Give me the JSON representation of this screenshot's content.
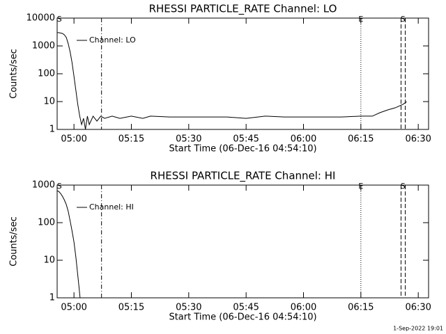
{
  "chart_data": [
    {
      "type": "line",
      "title": "RHESSI PARTICLE_RATE Channel: LO",
      "xlabel": "Start Time (06-Dec-16 04:54:10)",
      "ylabel": "Counts/sec",
      "log_y": true,
      "xlim": [
        295.6,
        392.7
      ],
      "ylim": [
        1,
        10000
      ],
      "yticks": [
        1,
        10,
        100,
        1000,
        10000
      ],
      "xticks": [
        {
          "value": 300,
          "label": "05:00"
        },
        {
          "value": 315,
          "label": "05:15"
        },
        {
          "value": 330,
          "label": "05:30"
        },
        {
          "value": 345,
          "label": "05:45"
        },
        {
          "value": 360,
          "label": "06:00"
        },
        {
          "value": 375,
          "label": "06:15"
        },
        {
          "value": 390,
          "label": "06:30"
        }
      ],
      "x": [
        295.6,
        296,
        296.5,
        297,
        297.5,
        298,
        298.5,
        299,
        299.5,
        300,
        300.5,
        301,
        301.5,
        302,
        302.5,
        303,
        303.5,
        304,
        305,
        306,
        307,
        308,
        310,
        312,
        315,
        318,
        320,
        325,
        330,
        335,
        340,
        345,
        350,
        355,
        360,
        365,
        370,
        375,
        378,
        380,
        382,
        384,
        386,
        387
      ],
      "series": [
        {
          "name": "Channel: LO",
          "color": "#000000",
          "values": [
            3000,
            3000,
            2900,
            2800,
            2500,
            2000,
            1200,
            600,
            250,
            80,
            25,
            8,
            3,
            1.5,
            2.5,
            1,
            3,
            1.5,
            3,
            2,
            3,
            2.5,
            3,
            2.5,
            3,
            2.5,
            3,
            2.8,
            2.8,
            2.8,
            2.8,
            2.5,
            3,
            2.8,
            2.8,
            2.8,
            2.8,
            3,
            3,
            4,
            5,
            6,
            8,
            10
          ]
        }
      ],
      "markers": [
        {
          "x": 307.2,
          "style": "dashdot"
        },
        {
          "x": 375.0,
          "style": "dotted"
        },
        {
          "x": 385.5,
          "style": "dashed"
        },
        {
          "x": 386.6,
          "style": "dashed"
        }
      ],
      "flags": [
        {
          "x": 296.2,
          "label": "S"
        },
        {
          "x": 375.0,
          "label": "E"
        },
        {
          "x": 386.0,
          "label": "S"
        }
      ]
    },
    {
      "type": "line",
      "title": "RHESSI PARTICLE_RATE Channel: HI",
      "xlabel": "Start Time (06-Dec-16 04:54:10)",
      "ylabel": "Counts/sec",
      "log_y": true,
      "xlim": [
        295.6,
        392.7
      ],
      "ylim": [
        1,
        1000
      ],
      "yticks": [
        1,
        10,
        100,
        1000
      ],
      "xticks": [
        {
          "value": 300,
          "label": "05:00"
        },
        {
          "value": 315,
          "label": "05:15"
        },
        {
          "value": 330,
          "label": "05:30"
        },
        {
          "value": 345,
          "label": "05:45"
        },
        {
          "value": 360,
          "label": "06:00"
        },
        {
          "value": 375,
          "label": "06:15"
        },
        {
          "value": 390,
          "label": "06:30"
        }
      ],
      "x": [
        295.6,
        296,
        296.5,
        297,
        297.5,
        298,
        298.5,
        299,
        299.5,
        300,
        300.5,
        301,
        301.3,
        301.6
      ],
      "series": [
        {
          "name": "Channel: HI",
          "color": "#000000",
          "values": [
            700,
            680,
            600,
            500,
            400,
            300,
            200,
            110,
            60,
            30,
            12,
            4,
            2,
            1
          ]
        }
      ],
      "markers": [
        {
          "x": 307.2,
          "style": "dashdot"
        },
        {
          "x": 375.0,
          "style": "dotted"
        },
        {
          "x": 385.5,
          "style": "dashed"
        },
        {
          "x": 386.6,
          "style": "dashed"
        }
      ],
      "flags": [
        {
          "x": 296.2,
          "label": "S"
        },
        {
          "x": 375.0,
          "label": "E"
        },
        {
          "x": 386.0,
          "label": "S"
        }
      ]
    }
  ],
  "footer": "1-Sep-2022 19:01"
}
